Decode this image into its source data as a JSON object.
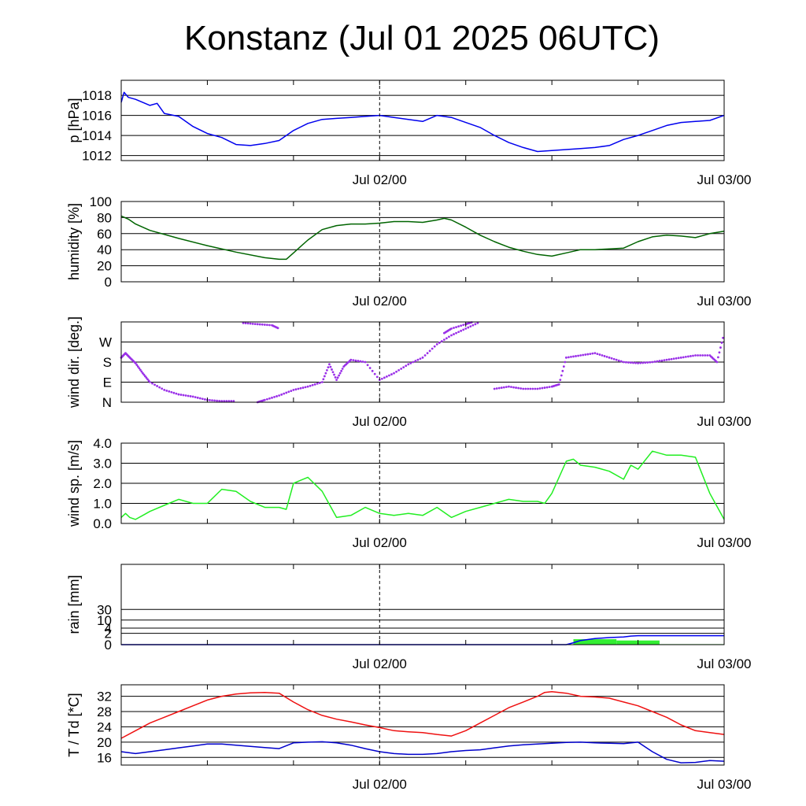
{
  "title": "Konstanz (Jul 01 2025 06UTC)",
  "colors": {
    "pressure": "#0000ee",
    "humidity": "#006400",
    "wind_dir": "#9a30e8",
    "wind_speed": "#22ee22",
    "rain_bar": "#33ee33",
    "rain_cum": "#0000ee",
    "temperature": "#ee1111",
    "dewpoint": "#0000cc",
    "grid": "#000000"
  },
  "chart_data": [
    {
      "type": "line",
      "ylabel": "p [hPa]",
      "ylim": [
        1011.5,
        1019.5
      ],
      "yticks": [
        {
          "v": 1012,
          "label": "1012"
        },
        {
          "v": 1014,
          "label": "1014"
        },
        {
          "v": 1016,
          "label": "1016"
        },
        {
          "v": 1018,
          "label": "1018"
        }
      ],
      "xlim": [
        0,
        42
      ],
      "xticks": [
        {
          "v": 18,
          "label": "Jul 02/00"
        },
        {
          "v": 42,
          "label": "Jul 03/00"
        }
      ],
      "series": [
        {
          "color_key": "pressure",
          "x": [
            0,
            0.2,
            0.5,
            1,
            2,
            2.5,
            3,
            4,
            5,
            6,
            7,
            8,
            9,
            10,
            11,
            12,
            13,
            14,
            15,
            16,
            17,
            18,
            19,
            20,
            21,
            22,
            23,
            24,
            25,
            26,
            27,
            28,
            29,
            30,
            31,
            32,
            33,
            34,
            35,
            36,
            37,
            38,
            39,
            40,
            41,
            42
          ],
          "y": [
            1017.3,
            1018.3,
            1017.8,
            1017.6,
            1017.0,
            1017.2,
            1016.2,
            1015.9,
            1014.9,
            1014.2,
            1013.8,
            1013.1,
            1013.0,
            1013.2,
            1013.5,
            1014.5,
            1015.2,
            1015.6,
            1015.7,
            1015.8,
            1015.9,
            1016.0,
            1015.8,
            1015.6,
            1015.4,
            1016.0,
            1015.8,
            1015.3,
            1014.8,
            1014.0,
            1013.3,
            1012.8,
            1012.4,
            1012.5,
            1012.6,
            1012.7,
            1012.8,
            1013.0,
            1013.6,
            1014.0,
            1014.5,
            1015.0,
            1015.3,
            1015.4,
            1015.5,
            1016.0
          ]
        }
      ]
    },
    {
      "type": "line",
      "ylabel": "humidity [%]",
      "ylim": [
        0,
        100
      ],
      "yticks": [
        {
          "v": 0,
          "label": "0"
        },
        {
          "v": 20,
          "label": "20"
        },
        {
          "v": 40,
          "label": "40"
        },
        {
          "v": 60,
          "label": "60"
        },
        {
          "v": 80,
          "label": "80"
        },
        {
          "v": 100,
          "label": "100"
        }
      ],
      "xlim": [
        0,
        42
      ],
      "xticks": [
        {
          "v": 18,
          "label": "Jul 02/00"
        },
        {
          "v": 42,
          "label": "Jul 03/00"
        }
      ],
      "series": [
        {
          "color_key": "humidity",
          "x": [
            0,
            0.5,
            1,
            2,
            4,
            6,
            8,
            10,
            11,
            11.5,
            12,
            13,
            14,
            15,
            16,
            17,
            18,
            19,
            20,
            21,
            22,
            22.5,
            23,
            24,
            25,
            26,
            27,
            28,
            29,
            30,
            31,
            32,
            33,
            34,
            35,
            36,
            37,
            38,
            39,
            40,
            41,
            42
          ],
          "y": [
            82,
            78,
            72,
            64,
            54,
            45,
            37,
            30,
            28,
            28,
            36,
            52,
            65,
            70,
            72,
            72,
            73,
            75,
            75,
            74,
            77,
            79,
            77,
            68,
            58,
            50,
            43,
            38,
            34,
            32,
            36,
            40,
            40,
            41,
            42,
            50,
            56,
            58,
            57,
            55,
            60,
            63
          ]
        }
      ]
    },
    {
      "type": "scatter",
      "ylabel": "wind dir. [deg.]",
      "ylim": [
        0,
        360
      ],
      "yticks": [
        {
          "v": 0,
          "label": "N"
        },
        {
          "v": 90,
          "label": "E"
        },
        {
          "v": 180,
          "label": "S"
        },
        {
          "v": 270,
          "label": "W"
        }
      ],
      "xlim": [
        0,
        42
      ],
      "xticks": [
        {
          "v": 18,
          "label": "Jul 02/00"
        },
        {
          "v": 42,
          "label": "Jul 03/00"
        }
      ],
      "series": [
        {
          "color_key": "wind_dir",
          "x": [
            0,
            0.3,
            0.6,
            1,
            1.5,
            2,
            3,
            4,
            5,
            6,
            7,
            8,
            9,
            9.5,
            10,
            11,
            12,
            13,
            14,
            14.5,
            15,
            15.5,
            16,
            17,
            18,
            19,
            20,
            21,
            22,
            23,
            24,
            25,
            26,
            27,
            28,
            29,
            30,
            30.5,
            31,
            32,
            33,
            34,
            35,
            36,
            37,
            38,
            39,
            40,
            41,
            41.5,
            42
          ],
          "y": [
            200,
            220,
            200,
            175,
            130,
            90,
            55,
            35,
            25,
            10,
            5,
            5,
            340,
            0,
            10,
            30,
            55,
            70,
            90,
            170,
            100,
            160,
            190,
            180,
            100,
            130,
            170,
            200,
            260,
            300,
            330,
            360,
            60,
            70,
            60,
            60,
            70,
            80,
            200,
            210,
            220,
            200,
            180,
            175,
            180,
            190,
            200,
            210,
            210,
            180,
            310
          ]
        },
        {
          "color_key": "wind_dir",
          "x": [
            8.5,
            9.5,
            10.5,
            11
          ],
          "y": [
            355,
            350,
            345,
            330
          ]
        },
        {
          "color_key": "wind_dir",
          "x": [
            22.5,
            23,
            24,
            24.5
          ],
          "y": [
            310,
            330,
            350,
            360
          ]
        }
      ]
    },
    {
      "type": "line",
      "ylabel": "wind sp. [m/s]",
      "ylim": [
        0,
        4
      ],
      "yticks": [
        {
          "v": 0,
          "label": "0.0"
        },
        {
          "v": 1,
          "label": "1.0"
        },
        {
          "v": 2,
          "label": "2.0"
        },
        {
          "v": 3,
          "label": "3.0"
        },
        {
          "v": 4,
          "label": "4.0"
        }
      ],
      "xlim": [
        0,
        42
      ],
      "xticks": [
        {
          "v": 18,
          "label": "Jul 02/00"
        },
        {
          "v": 42,
          "label": "Jul 03/00"
        }
      ],
      "series": [
        {
          "color_key": "wind_speed",
          "x": [
            0,
            0.3,
            0.6,
            1,
            1.5,
            2,
            3,
            4,
            5,
            6,
            7,
            8,
            9,
            10,
            11,
            11.5,
            12,
            13,
            14,
            15,
            16,
            17,
            18,
            19,
            20,
            21,
            22,
            23,
            24,
            25,
            26,
            27,
            28,
            29,
            29.5,
            30,
            31,
            31.5,
            32,
            33,
            34,
            35,
            35.5,
            36,
            37,
            38,
            39,
            40,
            41,
            42
          ],
          "y": [
            0.3,
            0.5,
            0.3,
            0.2,
            0.4,
            0.6,
            0.9,
            1.2,
            1.0,
            1.0,
            1.7,
            1.6,
            1.1,
            0.8,
            0.8,
            0.7,
            2.0,
            2.3,
            1.6,
            0.3,
            0.4,
            0.8,
            0.5,
            0.4,
            0.5,
            0.4,
            0.8,
            0.3,
            0.6,
            0.8,
            1.0,
            1.2,
            1.1,
            1.1,
            1.0,
            1.5,
            3.1,
            3.2,
            2.9,
            2.8,
            2.6,
            2.2,
            2.9,
            2.7,
            3.6,
            3.4,
            3.4,
            3.3,
            1.5,
            0.2
          ]
        }
      ]
    },
    {
      "type": "bar+line",
      "ylabel": "rain [mm]",
      "ylim_scaled": [
        0,
        3.4
      ],
      "yticks": [
        {
          "v": 0,
          "label": "0"
        },
        {
          "v": 2,
          "label": "2"
        },
        {
          "v": 4,
          "label": "4"
        },
        {
          "v": 10,
          "label": "10"
        },
        {
          "v": 30,
          "label": "30"
        }
      ],
      "xlim": [
        0,
        42
      ],
      "xticks": [
        {
          "v": 18,
          "label": "Jul 02/00"
        },
        {
          "v": 42,
          "label": "Jul 03/00"
        }
      ],
      "bars": [
        {
          "x0": 31.5,
          "x1": 34.5,
          "value": 0.7
        },
        {
          "x0": 34.5,
          "x1": 37.5,
          "value": 0.5
        },
        {
          "x0": 37.5,
          "x1": 42,
          "value": 0.05
        }
      ],
      "series": [
        {
          "color_key": "rain_cum",
          "x": [
            0,
            31,
            31.5,
            32,
            33,
            34,
            35,
            35.5,
            36,
            37,
            42
          ],
          "y": [
            0,
            0,
            0.2,
            0.5,
            0.8,
            1.0,
            1.1,
            1.3,
            1.4,
            1.4,
            1.4
          ]
        }
      ]
    },
    {
      "type": "line",
      "ylabel": "T / Td [*C]",
      "ylim": [
        14,
        35
      ],
      "yticks": [
        {
          "v": 16,
          "label": "16"
        },
        {
          "v": 20,
          "label": "20"
        },
        {
          "v": 24,
          "label": "24"
        },
        {
          "v": 28,
          "label": "28"
        },
        {
          "v": 32,
          "label": "32"
        }
      ],
      "xlim": [
        0,
        42
      ],
      "xticks": [
        {
          "v": 18,
          "label": "Jul 02/00"
        },
        {
          "v": 42,
          "label": "Jul 03/00"
        }
      ],
      "series": [
        {
          "color_key": "temperature",
          "x": [
            0,
            1,
            2,
            3,
            4,
            5,
            6,
            7,
            8,
            9,
            10,
            11,
            12,
            13,
            14,
            15,
            16,
            17,
            18,
            19,
            20,
            21,
            22,
            23,
            24,
            25,
            26,
            27,
            28,
            29,
            29.5,
            30,
            31,
            32,
            33,
            34,
            35,
            36,
            37,
            38,
            39,
            40,
            41,
            42
          ],
          "y": [
            21,
            23,
            25,
            26.5,
            28,
            29.5,
            31,
            32,
            32.6,
            32.9,
            33,
            32.8,
            30.5,
            28.5,
            27,
            26,
            25.3,
            24.5,
            23.8,
            23,
            22.7,
            22.5,
            22,
            21.6,
            23,
            25,
            27,
            29,
            30.5,
            32,
            33,
            33.2,
            32.8,
            32,
            31.8,
            31.5,
            30.5,
            29.5,
            28,
            26.5,
            24.5,
            23,
            22.5,
            22
          ]
        },
        {
          "color_key": "dewpoint",
          "x": [
            0,
            1,
            2,
            3,
            4,
            5,
            6,
            7,
            8,
            9,
            10,
            11,
            12,
            13,
            14,
            15,
            16,
            17,
            18,
            19,
            20,
            21,
            22,
            23,
            24,
            25,
            26,
            27,
            28,
            29,
            30,
            31,
            32,
            33,
            34,
            35,
            36,
            37,
            38,
            39,
            40,
            41,
            42
          ],
          "y": [
            17.5,
            17,
            17.5,
            18,
            18.5,
            19,
            19.5,
            19.5,
            19.2,
            18.9,
            18.6,
            18.3,
            19.8,
            20,
            20.1,
            19.8,
            19.2,
            18.3,
            17.5,
            17,
            16.8,
            16.8,
            17,
            17.5,
            17.8,
            18,
            18.5,
            19,
            19.3,
            19.5,
            19.7,
            19.9,
            20,
            19.8,
            19.7,
            19.6,
            20,
            17.5,
            15.5,
            14.6,
            14.7,
            15.2,
            15
          ]
        }
      ]
    }
  ]
}
